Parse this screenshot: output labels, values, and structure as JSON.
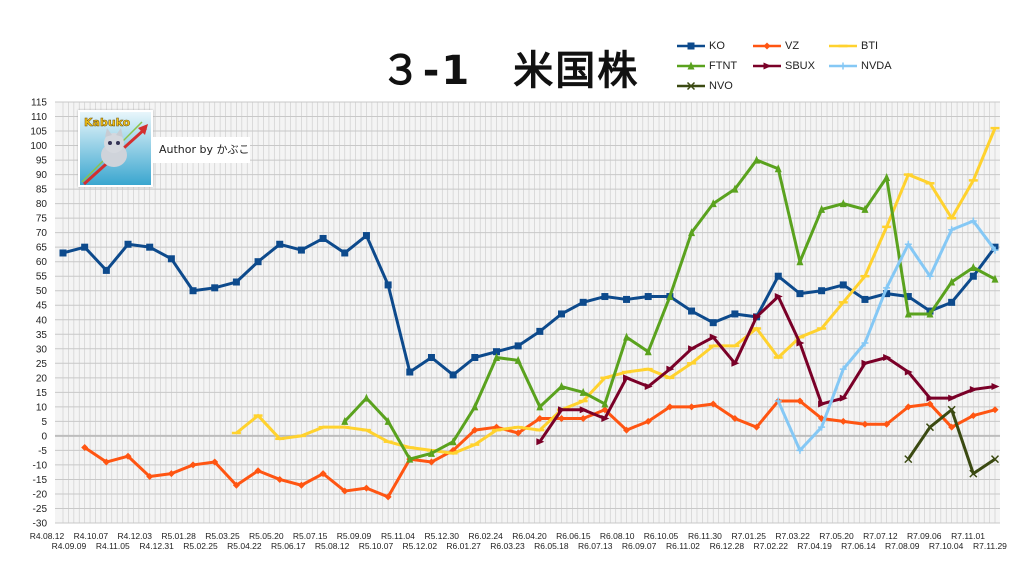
{
  "chart_data": {
    "type": "line",
    "title": "３-1　米国株",
    "xlabel": "",
    "ylabel": "",
    "ylim": [
      -30,
      115
    ],
    "ytick_step": 5,
    "grid": true,
    "legend_position": "top-right",
    "categories": [
      "R4.08.12",
      "R4.09.09",
      "R4.10.07",
      "R4.11.05",
      "R4.12.03",
      "R4.12.31",
      "R5.01.28",
      "R5.02.25",
      "R5.03.25",
      "R5.04.22",
      "R5.05.20",
      "R5.06.17",
      "R5.07.15",
      "R5.08.12",
      "R5.09.09",
      "R5.10.07",
      "R5.11.04",
      "R5.12.02",
      "R5.12.30",
      "R6.01.27",
      "R6.02.24",
      "R6.03.23",
      "R6.04.20",
      "R6.05.18",
      "R6.06.15",
      "R6.07.13",
      "R6.08.10",
      "R6.09.07",
      "R6.10.05",
      "R6.11.02",
      "R6.11.30",
      "R6.12.28",
      "R7.01.25",
      "R7.02.22",
      "R7.03.22",
      "R7.04.19",
      "R7.05.20",
      "R7.06.14",
      "R7.07.12",
      "R7.08.09",
      "R7.09.06",
      "R7.10.04",
      "R7.11.01",
      "R7.11.29"
    ],
    "series": [
      {
        "name": "KO",
        "color": "#0d4a8c",
        "marker": "square",
        "values": [
          63,
          65,
          57,
          66,
          65,
          61,
          50,
          51,
          53,
          60,
          66,
          64,
          68,
          63,
          69,
          52,
          22,
          27,
          21,
          27,
          29,
          31,
          36,
          42,
          46,
          48,
          47,
          48,
          48,
          43,
          39,
          42,
          41,
          55,
          49,
          50,
          52,
          47,
          49,
          48,
          43,
          46,
          55,
          65
        ]
      },
      {
        "name": "VZ",
        "color": "#ff5512",
        "marker": "diamond",
        "values": [
          null,
          -4,
          -9,
          -7,
          -14,
          -13,
          -10,
          -9,
          -17,
          -12,
          -15,
          -17,
          -13,
          -19,
          -18,
          -21,
          -8,
          -9,
          -5,
          2,
          3,
          1,
          6,
          6,
          6,
          9,
          2,
          5,
          10,
          10,
          11,
          6,
          3,
          12,
          12,
          6,
          5,
          4,
          4,
          10,
          11,
          3,
          7,
          9
        ]
      },
      {
        "name": "BTI",
        "color": "#ffd22e",
        "marker": "dash",
        "values": [
          null,
          null,
          null,
          null,
          null,
          null,
          null,
          null,
          1,
          7,
          -1,
          0,
          3,
          3,
          2,
          -2,
          -4,
          -5,
          -6,
          -3,
          2,
          3,
          2,
          9,
          12,
          20,
          22,
          23,
          20,
          25,
          31,
          31,
          37,
          27,
          34,
          37,
          46,
          55,
          72,
          90,
          87,
          75,
          88,
          106
        ]
      },
      {
        "name": "FTNT",
        "color": "#5aa21e",
        "marker": "triangle",
        "values": [
          null,
          null,
          null,
          null,
          null,
          null,
          null,
          null,
          null,
          null,
          null,
          null,
          null,
          5,
          13,
          5,
          -8,
          -6,
          -2,
          10,
          27,
          26,
          10,
          17,
          15,
          11,
          34,
          29,
          48,
          70,
          80,
          85,
          95,
          92,
          60,
          78,
          80,
          78,
          89,
          42,
          42,
          53,
          58,
          54
        ]
      },
      {
        "name": "SBUX",
        "color": "#7a0028",
        "marker": "arrow",
        "values": [
          null,
          null,
          null,
          null,
          null,
          null,
          null,
          null,
          null,
          null,
          null,
          null,
          null,
          null,
          null,
          null,
          null,
          null,
          null,
          null,
          null,
          null,
          -2,
          9,
          9,
          6,
          20,
          17,
          23,
          30,
          34,
          25,
          41,
          48,
          32,
          11,
          13,
          25,
          27,
          22,
          13,
          13,
          16,
          17
        ]
      },
      {
        "name": "NVDA",
        "color": "#85c8f5",
        "marker": "plus",
        "values": [
          null,
          null,
          null,
          null,
          null,
          null,
          null,
          null,
          null,
          null,
          null,
          null,
          null,
          null,
          null,
          null,
          null,
          null,
          null,
          null,
          null,
          null,
          null,
          null,
          null,
          null,
          null,
          null,
          null,
          null,
          null,
          null,
          null,
          12,
          -5,
          3,
          23,
          32,
          51,
          66,
          55,
          71,
          74,
          64
        ]
      },
      {
        "name": "NVO",
        "color": "#3b4a12",
        "marker": "x",
        "values": [
          null,
          null,
          null,
          null,
          null,
          null,
          null,
          null,
          null,
          null,
          null,
          null,
          null,
          null,
          null,
          null,
          null,
          null,
          null,
          null,
          null,
          null,
          null,
          null,
          null,
          null,
          null,
          null,
          null,
          null,
          null,
          null,
          null,
          null,
          null,
          null,
          null,
          null,
          null,
          -8,
          3,
          9,
          -13,
          -8
        ]
      }
    ]
  },
  "logo": {
    "text": "Kabuko"
  },
  "author": {
    "label": "Author by かぶこ"
  }
}
